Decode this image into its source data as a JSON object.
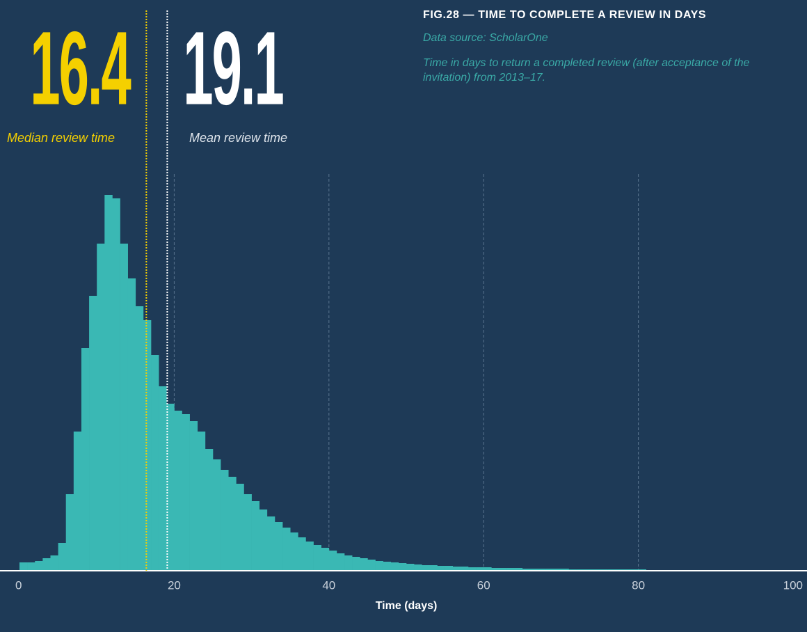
{
  "chart_data": {
    "type": "histogram",
    "title": "FIG.28 — TIME TO COMPLETE A REVIEW IN DAYS",
    "subtitle": "Data source: ScholarOne",
    "note": "Time in days to return a completed review (after acceptance of the invitation) from 2013–17.",
    "x_label": "Time (days)",
    "color": "#3ab8b4",
    "bins": [
      0,
      1,
      2,
      3,
      4,
      5,
      6,
      7,
      8,
      9,
      10,
      11,
      12,
      13,
      14,
      15,
      16,
      17,
      18,
      19,
      20,
      21,
      22,
      23,
      24,
      25,
      26,
      27,
      28,
      29,
      30,
      31,
      32,
      33,
      34,
      35,
      36,
      37,
      38,
      39,
      40,
      41,
      42,
      43,
      44,
      45,
      46,
      47,
      48,
      49,
      50,
      51,
      52,
      53,
      54,
      55,
      56,
      57,
      58,
      59,
      60,
      61,
      62,
      63,
      64,
      65,
      66,
      67,
      68,
      69,
      70,
      71,
      72,
      73,
      74,
      75,
      76,
      77,
      78,
      79,
      80,
      81,
      82,
      83,
      84,
      85,
      86,
      87,
      88,
      89,
      90,
      91,
      92,
      93,
      94,
      95,
      96,
      97,
      98,
      99,
      100
    ],
    "values": [
      12,
      12,
      14,
      18,
      22,
      40,
      110,
      200,
      320,
      395,
      470,
      540,
      535,
      470,
      420,
      380,
      360,
      310,
      265,
      240,
      230,
      225,
      215,
      200,
      175,
      160,
      145,
      135,
      125,
      110,
      100,
      88,
      78,
      70,
      62,
      55,
      48,
      42,
      37,
      33,
      29,
      25,
      22,
      20,
      18,
      16,
      14,
      13,
      12,
      11,
      10,
      9,
      8,
      8,
      7,
      7,
      6,
      6,
      5,
      5,
      5,
      4,
      4,
      4,
      4,
      3,
      3,
      3,
      3,
      3,
      3,
      2,
      2,
      2,
      2,
      2,
      2,
      2,
      2,
      2,
      2,
      1,
      1,
      1,
      1,
      1,
      1,
      1,
      1,
      1,
      1,
      1,
      1,
      1,
      1,
      1,
      1,
      1,
      1,
      1,
      1
    ],
    "xlim": [
      0,
      100
    ],
    "xticks": [
      0,
      20,
      40,
      60,
      80,
      100
    ],
    "ylim": [
      0,
      570
    ],
    "grid": true,
    "reference_lines": [
      {
        "value": 16.4,
        "label": "Median review time",
        "color": "#f5d000"
      },
      {
        "value": 19.1,
        "label": "Mean review time",
        "color": "#ffffff"
      }
    ]
  }
}
